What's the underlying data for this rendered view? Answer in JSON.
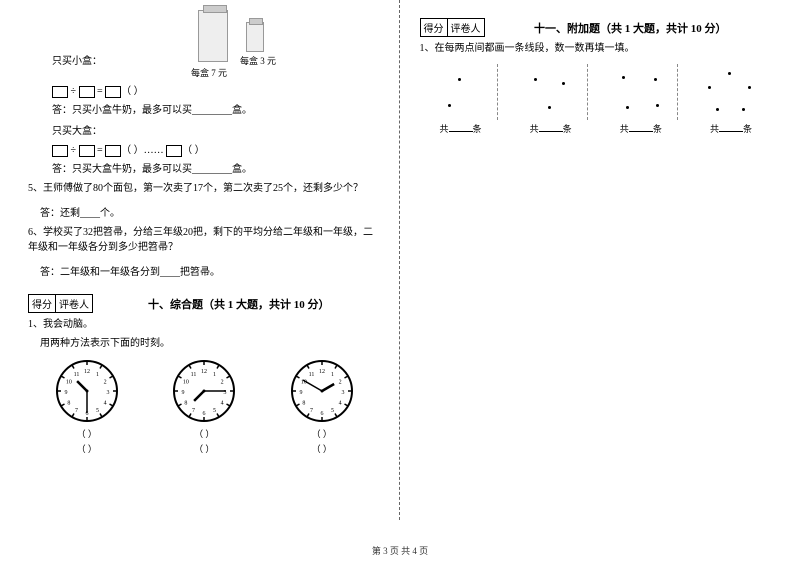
{
  "left": {
    "milk": {
      "buy_small_label": "只买小盒：",
      "price_big": "每盒 7 元",
      "price_small": "每盒 3 元",
      "answer_small": "答：只买小盒牛奶，最多可以买________盒。",
      "buy_big_label": "只买大盒：",
      "answer_big": "答：只买大盒牛奶，最多可以买________盒。"
    },
    "q5": {
      "text": "5、王师傅做了80个面包，第一次卖了17个，第二次卖了25个，还剩多少个？",
      "ans": "答：还剩____个。"
    },
    "q6": {
      "text": "6、学校买了32把笤帚，分给三年级20把，剩下的平均分给二年级和一年级，二年级和一年级各分到多少把笤帚？",
      "ans": "答：二年级和一年级各分到____把笤帚。"
    },
    "section10": {
      "score_label": "得分",
      "marker_label": "评卷人",
      "title": "十、综合题（共 1 大题，共计 10 分）",
      "q1": "1、我会动脑。",
      "q1sub": "用两种方法表示下面的时刻。"
    },
    "clocks": [
      {
        "hour_angle": 315,
        "min_angle": 180
      },
      {
        "hour_angle": 225,
        "min_angle": 90
      },
      {
        "hour_angle": 60,
        "min_angle": 300
      }
    ]
  },
  "right": {
    "section11": {
      "score_label": "得分",
      "marker_label": "评卷人",
      "title": "十一、附加题（共 1 大题，共计 10 分）",
      "q1": "1、在每两点间都画一条线段，数一数再填一填。"
    },
    "dot_groups": [
      [
        [
          34,
          14
        ],
        [
          24,
          40
        ]
      ],
      [
        [
          20,
          14
        ],
        [
          48,
          18
        ],
        [
          34,
          42
        ]
      ],
      [
        [
          18,
          12
        ],
        [
          50,
          14
        ],
        [
          22,
          42
        ],
        [
          52,
          40
        ]
      ],
      [
        [
          34,
          8
        ],
        [
          14,
          22
        ],
        [
          54,
          22
        ],
        [
          22,
          44
        ],
        [
          48,
          44
        ]
      ]
    ],
    "count_label_prefix": "共",
    "count_label_suffix": "条"
  },
  "footer": "第 3 页  共 4 页",
  "paren": "（         ）",
  "colors": {
    "text": "#000000",
    "bg": "#ffffff",
    "dash": "#666666"
  }
}
